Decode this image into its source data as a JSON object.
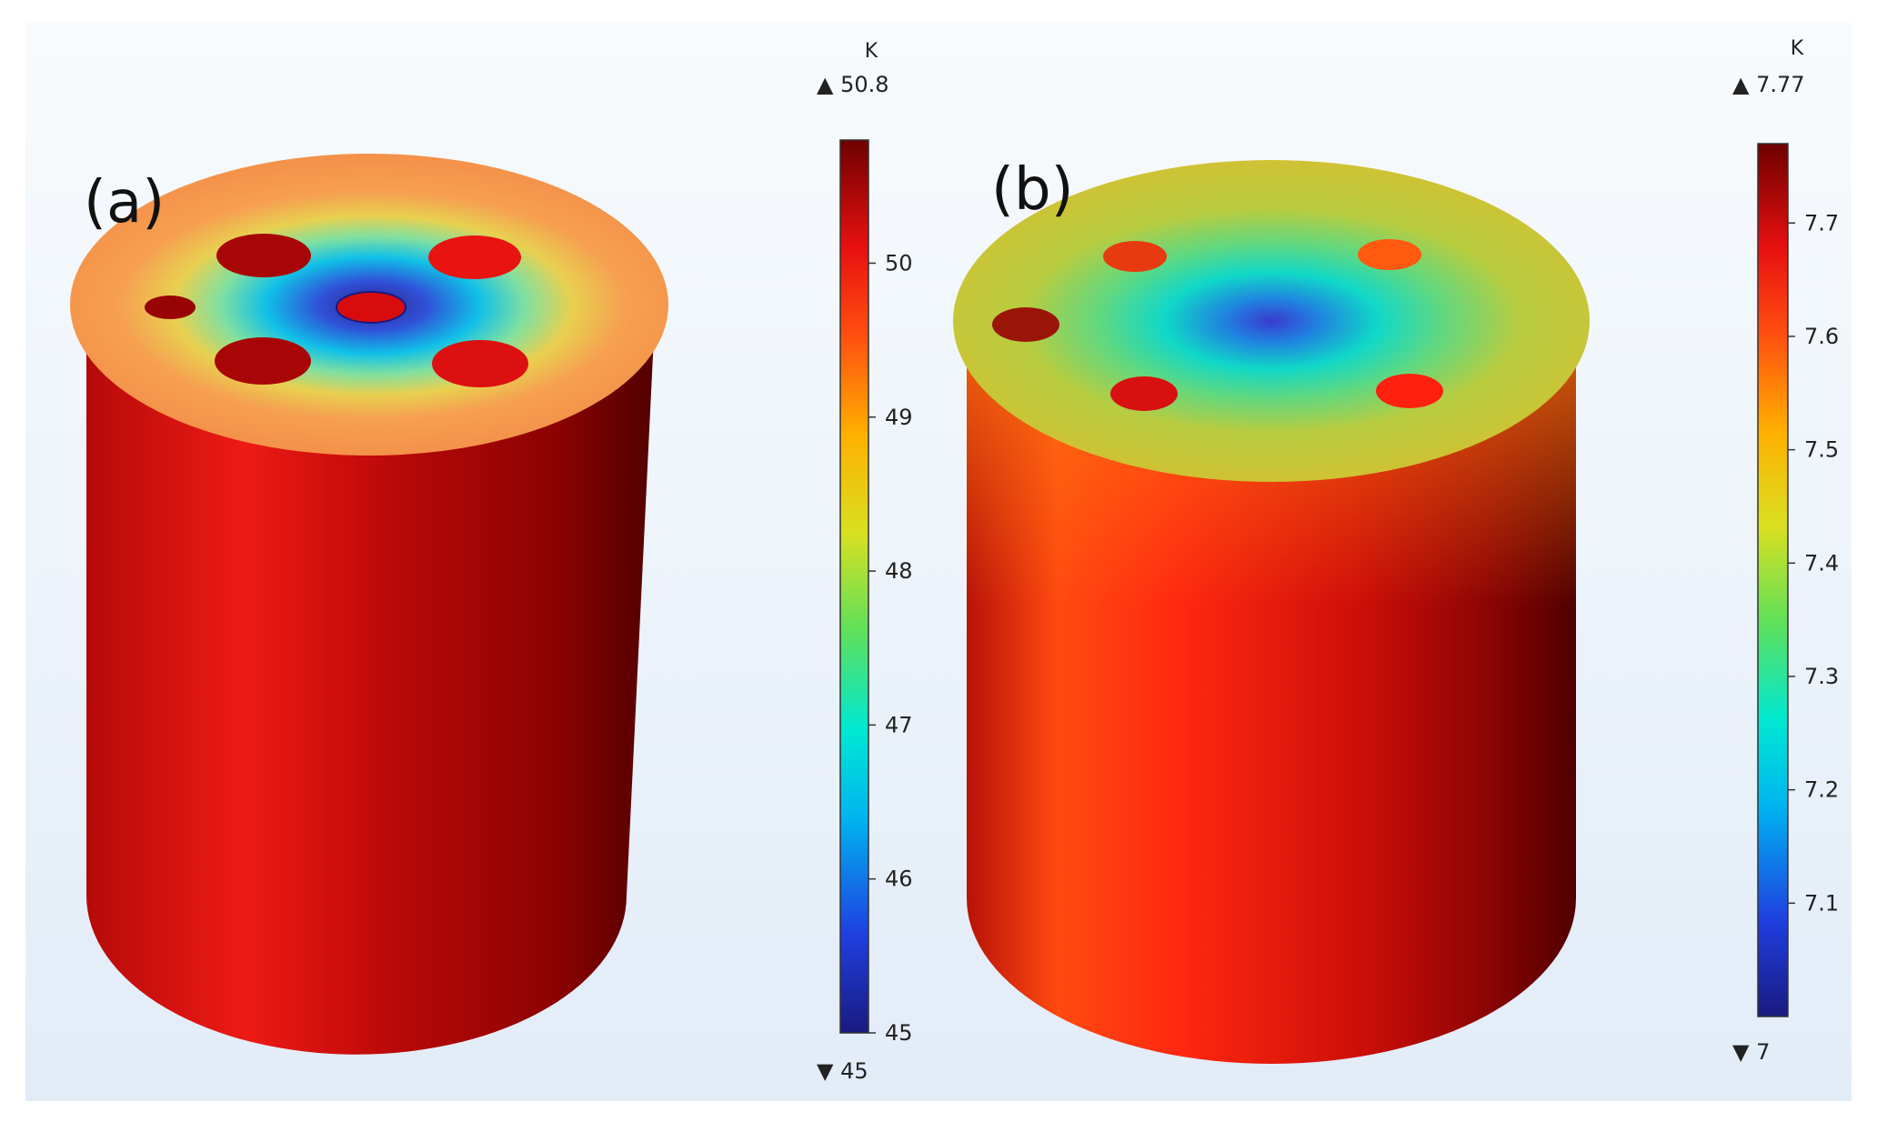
{
  "panels": [
    {
      "label": "(a)",
      "colorbar": {
        "unit": "K",
        "max_label": "▲ 50.8",
        "min_label": "▼ 45",
        "max_value": 50.8,
        "min_value": 45,
        "ticks": [
          "45",
          "46",
          "47",
          "48",
          "49",
          "50"
        ]
      }
    },
    {
      "label": "(b)",
      "colorbar": {
        "unit": "K",
        "max_label": "▲ 7.77",
        "min_label": "▼ 7",
        "max_value": 7.77,
        "min_value": 7,
        "ticks": [
          "7.1",
          "7.2",
          "7.3",
          "7.4",
          "7.5",
          "7.6",
          "7.7"
        ]
      }
    }
  ],
  "colors": {
    "colormap": [
      "#1a1a80",
      "#1f3fe0",
      "#00b4f0",
      "#00e8d2",
      "#5ee05a",
      "#d8e020",
      "#ffb000",
      "#ff5010",
      "#e81010",
      "#6e0000"
    ]
  }
}
